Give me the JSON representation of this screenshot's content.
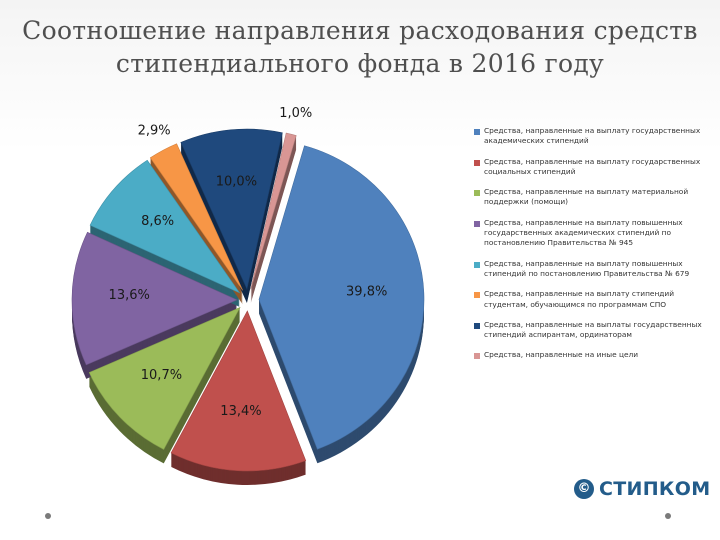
{
  "title": {
    "line1": "Соотношение направления расходования средств",
    "line2": "стипендиального фонда в 2016 году"
  },
  "chart_data": {
    "type": "pie",
    "title": "Соотношение направления расходования средств стипендиального фонда в 2016 году",
    "slices": [
      {
        "label": "Средства, направленные на выплату государственных академических стипендий",
        "value": 39.8,
        "display": "39,8%",
        "color": "#4f81bd"
      },
      {
        "label": "Средства, направленные на выплату государственных социальных стипендий",
        "value": 13.4,
        "display": "13,4%",
        "color": "#c0504d"
      },
      {
        "label": "Средства, направленные на выплату материальной поддержки (помощи)",
        "value": 10.7,
        "display": "10,7%",
        "color": "#9bbb59"
      },
      {
        "label": "Средства, направленные на выплату повышенных государственных академических стипендий по постановлению Правительства № 945",
        "value": 13.6,
        "display": "13,6%",
        "color": "#8064a2"
      },
      {
        "label": "Средства, направленные на выплату повышенных стипендий по постановлению Правительства № 679",
        "value": 8.6,
        "display": "8,6%",
        "color": "#4bacc6"
      },
      {
        "label": "Средства, направленные на выплату стипендий студентам, обучающимся по программам СПО",
        "value": 2.9,
        "display": "2,9%",
        "color": "#f79646"
      },
      {
        "label": "Средства, направленные на выплаты государственных стипендий аспирантам, ординаторам",
        "value": 10.0,
        "display": "10,0%",
        "color": "#1f497d"
      },
      {
        "label": "Средства, направленные на иные цели",
        "value": 1.0,
        "display": "1,0%",
        "color": "#d99694"
      }
    ],
    "legend_position": "right"
  },
  "logo": {
    "text": "СТИПКОМ",
    "mark": "©"
  }
}
